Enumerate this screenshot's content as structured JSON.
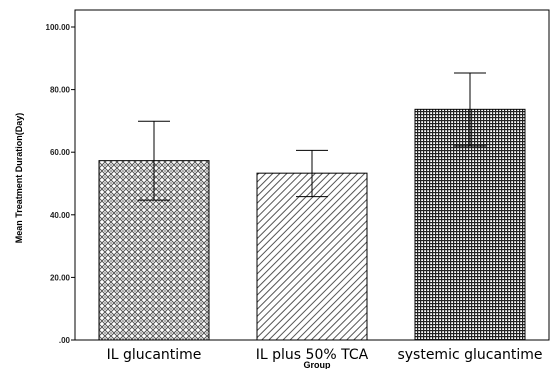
{
  "chart_data": {
    "type": "bar",
    "title": "",
    "xlabel": "Group",
    "ylabel": "Mean Treatment Duration(Day)",
    "ylim": [
      0,
      100
    ],
    "yticks": [
      0,
      20,
      40,
      60,
      80,
      100
    ],
    "ytick_labels": [
      ".00",
      "20.00",
      "40.00",
      "60.00",
      "80.00",
      "100.00"
    ],
    "categories": [
      "IL glucantime",
      "IL plus 50% TCA",
      "systemic glucantime"
    ],
    "values": [
      57.3,
      53.3,
      73.7
    ],
    "error_low": [
      44.7,
      45.8,
      62.0
    ],
    "error_high": [
      69.9,
      60.6,
      85.3
    ],
    "fill_patterns": [
      "crosshatch-diamond",
      "diagonal-lines",
      "dense-grid"
    ],
    "colors": {
      "bar_outline": "#000000",
      "pattern_ink": "#444444",
      "plot_border": "#000000",
      "background": "#ffffff"
    },
    "grid": false,
    "legend": "none"
  }
}
